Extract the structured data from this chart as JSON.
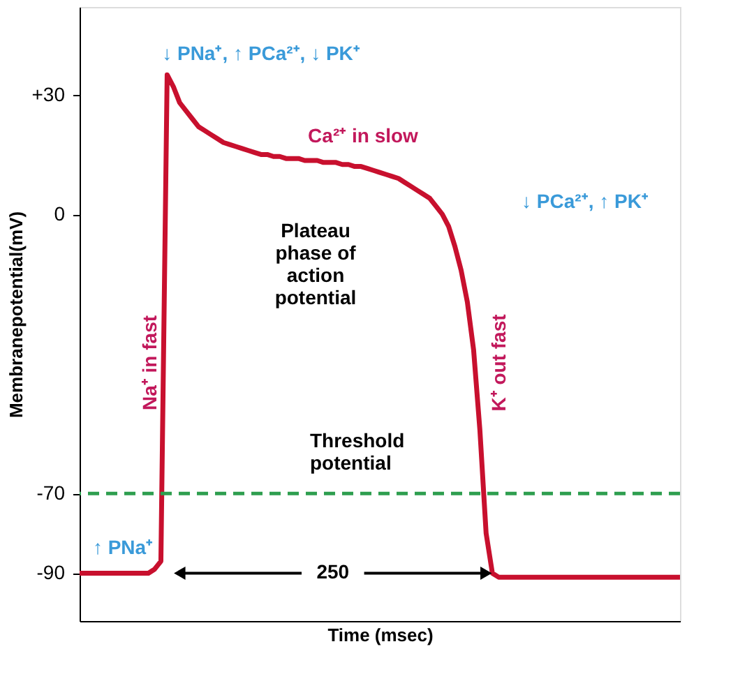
{
  "chart_data": {
    "type": "line",
    "xlabel": "Time (msec)",
    "ylabel": "Membranepotential(mV)",
    "categories": [
      null,
      null,
      null,
      null,
      null,
      null,
      null,
      null,
      null,
      null,
      null,
      null,
      null,
      null,
      null,
      null,
      null,
      null,
      null,
      null,
      null,
      null,
      null,
      null,
      null,
      null,
      null,
      null,
      null,
      null,
      null,
      null,
      null,
      null,
      null,
      null,
      null,
      null,
      null,
      null,
      null,
      null,
      null,
      null,
      null,
      null,
      null,
      null,
      null,
      null,
      null,
      null,
      null,
      null,
      null,
      null,
      null,
      null,
      null,
      null,
      null,
      null,
      null,
      null,
      null,
      null,
      null,
      null,
      null,
      null,
      null,
      null,
      null,
      null,
      null,
      null,
      null,
      null,
      null,
      null,
      null,
      null,
      null,
      null,
      null,
      null,
      null,
      null,
      null,
      null,
      null,
      null,
      null,
      null,
      null,
      null,
      null
    ],
    "series": [
      {
        "color": "#c8102e",
        "values": [
          -90,
          -90,
          -90,
          -90,
          -90,
          -90,
          -90,
          -90,
          -90,
          -90,
          -90,
          -90,
          -89,
          -87,
          35,
          32,
          28,
          26,
          24,
          22,
          21,
          20,
          19,
          18,
          17.5,
          17,
          16.5,
          16,
          15.5,
          15,
          15,
          14.5,
          14.5,
          14,
          14,
          14,
          13.5,
          13.5,
          13.5,
          13,
          13,
          13,
          12.5,
          12.5,
          12,
          12,
          11.5,
          11,
          10.5,
          10,
          9.5,
          9,
          8,
          7,
          6,
          5,
          4,
          2,
          0,
          -3,
          -8,
          -14,
          -22,
          -34,
          -54,
          -80,
          -90,
          -91,
          -91,
          -91,
          -91,
          -91,
          -91,
          -91,
          -91,
          -91,
          -91,
          -91,
          -91,
          -91,
          -91,
          -91,
          -91,
          -91,
          -91,
          -91,
          -91,
          -91,
          -91,
          -91,
          -91,
          -91,
          -91,
          -91,
          -91,
          -91,
          -91
        ]
      }
    ],
    "ylim": [
      -102,
      52
    ],
    "yticks": [
      {
        "value": 30,
        "label": "+30"
      },
      0,
      -70,
      -90
    ],
    "tick_labels": "y",
    "grid": false,
    "marker": "none",
    "line_style": "solid",
    "ref_lines": [
      {
        "axis": "y",
        "value": -70,
        "label": "Threshold\npotential",
        "color": "#2e9e4f",
        "line_style": "dashed"
      }
    ],
    "annotations": [
      "↓ PNa⁺, ↑ PCa²⁺, ↓ PK⁺",
      "Ca²⁺ in slow",
      "Plateau\nphase of\naction\npotential",
      "↓ PCa²⁺, ↑ PK⁺",
      "Na⁺ in fast",
      "K⁺ out fast",
      "↑ PNa⁺",
      "250"
    ]
  }
}
